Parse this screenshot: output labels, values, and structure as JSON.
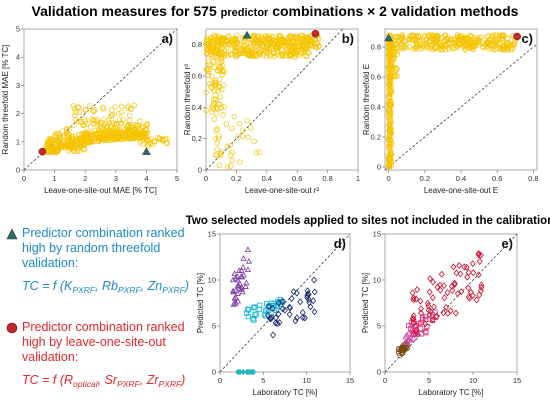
{
  "title": {
    "pre": "Validation measures for 575 ",
    "predictor": "predictor",
    "post": " combinations × 2 validation methods"
  },
  "subtitle_bottom": "Two selected models applied to sites not included in the calibration",
  "colors": {
    "cloud": "#f5c400",
    "triangle": "#2f6b6b",
    "circle": "#c62828",
    "blue_text": "#1f8cc6",
    "red_text": "#e0282c",
    "purple": "#7b3aa5",
    "cyan": "#15b5d8",
    "navy": "#17256b",
    "teal_axis": "#20b8b8",
    "orange": "#e35b12",
    "brown": "#7a4a10",
    "pink": "#e0307a",
    "deep_red": "#c8102e",
    "magenta": "#cc4aa8"
  },
  "legend": {
    "blue": {
      "text_lines": [
        "Predictor combination ranked",
        "high by random threefold",
        "validation:"
      ],
      "formula_prefix": "TC = f (K",
      "formula_parts": [
        {
          "sub": "PXRF",
          "sep": ", Rb"
        },
        {
          "sub": "PXRF",
          "sep": ", Zn"
        },
        {
          "sub": "PXRF",
          "sep": ")"
        }
      ]
    },
    "red": {
      "text_lines": [
        "Predictor combination ranked",
        "high by leave-one-site-out",
        "validation:"
      ],
      "formula_prefix": "TC = f (R",
      "formula_parts": [
        {
          "sub": "optical",
          "sep": ", Sr"
        },
        {
          "sub": "PXRF",
          "sep": ", Zr"
        },
        {
          "sub": "PXRF",
          "sep": ")"
        }
      ]
    }
  },
  "chart_data": [
    {
      "id": "a",
      "panel_label": "a)",
      "type": "scatter",
      "xlabel": "Leave-one-site-out MAE [% TC]",
      "ylabel": "Random threefold MAE [% TC]",
      "xlim": [
        0,
        5
      ],
      "ylim": [
        0,
        5
      ],
      "xticks": [
        "0",
        "1",
        "2",
        "3",
        "4",
        "5"
      ],
      "yticks": [
        "0",
        "1",
        "2",
        "3",
        "4",
        "5"
      ],
      "diagonal": true,
      "cloud": {
        "marker": "open-circle",
        "color": "cloud",
        "count": 575,
        "description_points": [
          [
            0.7,
            0.65
          ],
          [
            1,
            0.7
          ],
          [
            1.5,
            0.85
          ],
          [
            2,
            1.1
          ],
          [
            2.5,
            1.3
          ],
          [
            3,
            1.2
          ],
          [
            3.5,
            1.1
          ],
          [
            4.2,
            1.0
          ],
          [
            4.6,
            1.0
          ],
          [
            2.3,
            2.4
          ],
          [
            3.0,
            1.9
          ]
        ]
      },
      "highlight_triangle": [
        4.0,
        0.65
      ],
      "highlight_circle": [
        0.6,
        0.65
      ]
    },
    {
      "id": "b",
      "panel_label": "b)",
      "type": "scatter",
      "xlabel": "Leave-one-site-out r²",
      "ylabel": "Random threefold r²",
      "xlim": [
        0,
        1
      ],
      "ylim": [
        0,
        0.9
      ],
      "xticks": [
        "0",
        "0.2",
        "0.4",
        "0.6",
        "0.8",
        "1"
      ],
      "yticks": [
        "0",
        "0.2",
        "0.4",
        "0.6",
        "0.8"
      ],
      "diagonal": true,
      "cloud": {
        "marker": "open-circle",
        "color": "cloud",
        "count": 575,
        "description_points": [
          [
            0.02,
            0.8
          ],
          [
            0.2,
            0.8
          ],
          [
            0.4,
            0.82
          ],
          [
            0.6,
            0.83
          ],
          [
            0.7,
            0.85
          ],
          [
            0.05,
            0.6
          ],
          [
            0.1,
            0.4
          ],
          [
            0.25,
            0.1
          ]
        ]
      },
      "highlight_triangle": [
        0.27,
        0.86
      ],
      "highlight_circle": [
        0.72,
        0.87
      ]
    },
    {
      "id": "c",
      "panel_label": "c)",
      "type": "scatter",
      "xlabel": "Leave-one-site-out E",
      "ylabel": "Random threefold E",
      "xlim": [
        -0.02,
        0.82
      ],
      "ylim": [
        -0.02,
        0.92
      ],
      "xticks": [
        "0",
        "0.2",
        "0.4",
        "0.6",
        "0.8"
      ],
      "yticks": [
        "0",
        "0.2",
        "0.4",
        "0.6",
        "0.8"
      ],
      "diagonal": true,
      "cloud": {
        "marker": "open-circle",
        "color": "cloud",
        "count": 575,
        "description_points": [
          [
            0.0,
            0.0
          ],
          [
            0.0,
            0.4
          ],
          [
            0.0,
            0.86
          ],
          [
            0.2,
            0.84
          ],
          [
            0.4,
            0.84
          ],
          [
            0.6,
            0.86
          ],
          [
            0.7,
            0.87
          ]
        ]
      },
      "highlight_triangle": [
        0.0,
        0.86
      ],
      "highlight_circle": [
        0.71,
        0.87
      ]
    },
    {
      "id": "d",
      "panel_label": "d)",
      "type": "scatter",
      "xlabel": "Laboratory TC  [%]",
      "ylabel": "Predicted TC [%]",
      "xlim": [
        0,
        15
      ],
      "ylim": [
        0,
        15
      ],
      "xticks": [
        "0",
        "5",
        "10",
        "15"
      ],
      "yticks": [
        "0",
        "5",
        "10",
        "15"
      ],
      "diagonal": true,
      "series": [
        {
          "marker": "open-triangle",
          "color": "purple",
          "approx_x": [
            1.5,
            3.5
          ],
          "approx_y": [
            7,
            13.5
          ]
        },
        {
          "marker": "open-square",
          "color": "cyan",
          "approx_x": [
            3,
            7.5
          ],
          "approx_y": [
            5.5,
            8
          ]
        },
        {
          "marker": "open-diamond",
          "color": "navy",
          "approx_x": [
            5.5,
            11
          ],
          "approx_y": [
            3.5,
            10
          ]
        },
        {
          "marker": "filled-diamond",
          "color": "teal_axis",
          "approx_x": [
            2,
            4
          ],
          "approx_y": [
            0,
            0
          ]
        }
      ]
    },
    {
      "id": "e",
      "panel_label": "e)",
      "type": "scatter",
      "xlabel": "Laboratory TC  [%]",
      "ylabel": "Predicted TC [%]",
      "xlim": [
        0,
        15
      ],
      "ylim": [
        0,
        15
      ],
      "xticks": [
        "0",
        "5",
        "10",
        "15"
      ],
      "yticks": [
        "0",
        "5",
        "10",
        "15"
      ],
      "diagonal": true,
      "series": [
        {
          "marker": "open-circle",
          "color": "brown",
          "approx_x": [
            1.5,
            2.6
          ],
          "approx_y": [
            1.7,
            3.3
          ]
        },
        {
          "marker": "open-triangle",
          "color": "magenta",
          "approx_x": [
            2,
            4
          ],
          "approx_y": [
            3,
            5
          ]
        },
        {
          "marker": "open-square",
          "color": "pink",
          "approx_x": [
            2.5,
            6
          ],
          "approx_y": [
            3.5,
            6.5
          ]
        },
        {
          "marker": "open-diamond",
          "color": "deep_red",
          "approx_x": [
            3,
            11
          ],
          "approx_y": [
            4,
            13
          ]
        }
      ]
    }
  ]
}
